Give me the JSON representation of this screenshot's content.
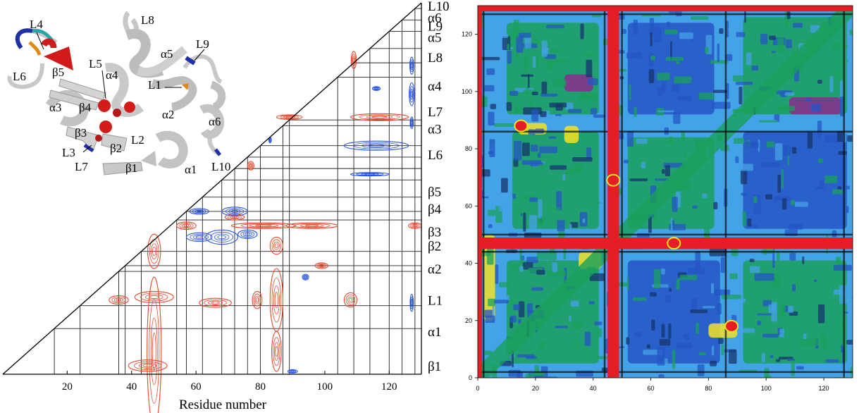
{
  "chart_data": [
    {
      "type": "heatmap",
      "panel": "left",
      "xlabel": "Residue number",
      "xlim": [
        0,
        130
      ],
      "ylim": [
        0,
        130
      ],
      "x_ticks": [
        20,
        40,
        60,
        80,
        100,
        120
      ],
      "segment_boundaries": [
        16,
        24,
        36,
        38,
        43,
        54,
        57,
        62,
        68,
        72,
        76,
        80,
        87,
        89,
        104,
        109,
        114,
        120,
        124,
        128
      ],
      "segment_labels": [
        {
          "label": "L10",
          "y": 129
        },
        {
          "label": "α6",
          "y": 125
        },
        {
          "label": "L9",
          "y": 122
        },
        {
          "label": "α5",
          "y": 118
        },
        {
          "label": "L8",
          "y": 111
        },
        {
          "label": "α4",
          "y": 101
        },
        {
          "label": "L7",
          "y": 92
        },
        {
          "label": "α3",
          "y": 86
        },
        {
          "label": "L6",
          "y": 77
        },
        {
          "label": "β5",
          "y": 64
        },
        {
          "label": "β4",
          "y": 58
        },
        {
          "label": "β3",
          "y": 50
        },
        {
          "label": "β2",
          "y": 45
        },
        {
          "label": "α2",
          "y": 37
        },
        {
          "label": "L1",
          "y": 26
        },
        {
          "label": "α1",
          "y": 15
        },
        {
          "label": "β1",
          "y": 3
        }
      ],
      "positive_color": "#e8472b",
      "negative_color": "#2b55e0",
      "contours": [
        {
          "sign": "positive",
          "x": 47,
          "y": 8,
          "rx": 2.2,
          "ry": 26
        },
        {
          "sign": "positive",
          "x": 45,
          "y": 3,
          "rx": 6,
          "ry": 2
        },
        {
          "sign": "positive",
          "x": 47,
          "y": 27,
          "rx": 6,
          "ry": 2
        },
        {
          "sign": "positive",
          "x": 47,
          "y": 43,
          "rx": 2,
          "ry": 6
        },
        {
          "sign": "positive",
          "x": 36,
          "y": 26,
          "rx": 3,
          "ry": 1.5
        },
        {
          "sign": "positive",
          "x": 66,
          "y": 25,
          "rx": 5,
          "ry": 1.6
        },
        {
          "sign": "positive",
          "x": 85,
          "y": 26,
          "rx": 2,
          "ry": 11
        },
        {
          "sign": "positive",
          "x": 85,
          "y": 8,
          "rx": 1.5,
          "ry": 7
        },
        {
          "sign": "positive",
          "x": 85,
          "y": 45,
          "rx": 2,
          "ry": 3
        },
        {
          "sign": "positive",
          "x": 79,
          "y": 26,
          "rx": 1.5,
          "ry": 3
        },
        {
          "sign": "positive",
          "x": 108,
          "y": 26,
          "rx": 2,
          "ry": 2.5
        },
        {
          "sign": "positive",
          "x": 99,
          "y": 38,
          "rx": 2,
          "ry": 1
        },
        {
          "sign": "positive",
          "x": 81,
          "y": 52,
          "rx": 10,
          "ry": 1
        },
        {
          "sign": "positive",
          "x": 96,
          "y": 52,
          "rx": 8,
          "ry": 1
        },
        {
          "sign": "positive",
          "x": 57,
          "y": 52,
          "rx": 3,
          "ry": 1.3
        },
        {
          "sign": "positive",
          "x": 72,
          "y": 55,
          "rx": 3,
          "ry": 1
        },
        {
          "sign": "positive",
          "x": 117,
          "y": 90,
          "rx": 9,
          "ry": 1.2
        },
        {
          "sign": "positive",
          "x": 109,
          "y": 110,
          "rx": 0.8,
          "ry": 3
        },
        {
          "sign": "positive",
          "x": 89,
          "y": 90,
          "rx": 4,
          "ry": 0.8
        },
        {
          "sign": "positive",
          "x": 77,
          "y": 73,
          "rx": 1,
          "ry": 1.5
        },
        {
          "sign": "positive",
          "x": 128,
          "y": 52,
          "rx": 2,
          "ry": 1
        },
        {
          "sign": "negative",
          "x": 68,
          "y": 48,
          "rx": 5,
          "ry": 2.5
        },
        {
          "sign": "negative",
          "x": 61,
          "y": 48,
          "rx": 4,
          "ry": 1.5
        },
        {
          "sign": "negative",
          "x": 76,
          "y": 49,
          "rx": 3,
          "ry": 1.5
        },
        {
          "sign": "negative",
          "x": 72,
          "y": 57,
          "rx": 4,
          "ry": 1.5
        },
        {
          "sign": "negative",
          "x": 61,
          "y": 57,
          "rx": 3,
          "ry": 1
        },
        {
          "sign": "negative",
          "x": 116,
          "y": 80,
          "rx": 10,
          "ry": 1.6
        },
        {
          "sign": "negative",
          "x": 114,
          "y": 70,
          "rx": 6,
          "ry": 0.6
        },
        {
          "sign": "negative",
          "x": 116,
          "y": 100,
          "rx": 1.2,
          "ry": 0.7
        },
        {
          "sign": "negative",
          "x": 127,
          "y": 98,
          "rx": 0.8,
          "ry": 4
        },
        {
          "sign": "negative",
          "x": 127,
          "y": 108,
          "rx": 0.6,
          "ry": 3
        },
        {
          "sign": "negative",
          "x": 127,
          "y": 88,
          "rx": 0.5,
          "ry": 2
        },
        {
          "sign": "negative",
          "x": 127,
          "y": 25,
          "rx": 0.5,
          "ry": 3
        },
        {
          "sign": "negative",
          "x": 94,
          "y": 34,
          "rx": 1,
          "ry": 1
        },
        {
          "sign": "negative",
          "x": 90,
          "y": 1,
          "rx": 1.5,
          "ry": 0.6
        },
        {
          "sign": "negative",
          "x": 83,
          "y": 82,
          "rx": 0.4,
          "ry": 1
        }
      ]
    },
    {
      "type": "heatmap",
      "panel": "right",
      "xlim": [
        0,
        130
      ],
      "ylim": [
        0,
        130
      ],
      "x_ticks": [
        0,
        20,
        40,
        60,
        80,
        100,
        120
      ],
      "y_ticks": [
        0,
        20,
        40,
        60,
        80,
        100,
        120
      ],
      "background_color": "#44a2e6",
      "bands": [
        {
          "axis": "x",
          "from": 45,
          "to": 49,
          "color": "#e51d24"
        },
        {
          "axis": "y",
          "from": 45,
          "to": 49,
          "color": "#e51d24"
        },
        {
          "axis": "y",
          "from": 128,
          "to": 130,
          "color": "#e51d24"
        },
        {
          "axis": "x",
          "from": 0,
          "to": 1.5,
          "color": "#e51d24"
        }
      ],
      "patches": [
        {
          "x": 10,
          "y": 5,
          "w": 32,
          "h": 36,
          "color": "#1aa05c"
        },
        {
          "x": 12,
          "y": 52,
          "w": 30,
          "h": 34,
          "color": "#1aa05c"
        },
        {
          "x": 52,
          "y": 52,
          "w": 30,
          "h": 32,
          "color": "#1aa05c"
        },
        {
          "x": 92,
          "y": 5,
          "w": 36,
          "h": 36,
          "color": "#1aa05c"
        },
        {
          "x": 52,
          "y": 5,
          "w": 32,
          "h": 36,
          "color": "#2455c4"
        },
        {
          "x": 92,
          "y": 52,
          "w": 36,
          "h": 34,
          "color": "#2455c4"
        },
        {
          "x": 52,
          "y": 92,
          "w": 30,
          "h": 32,
          "color": "#2455c4"
        },
        {
          "x": 10,
          "y": 92,
          "w": 32,
          "h": 32,
          "color": "#1aa05c"
        },
        {
          "x": 92,
          "y": 92,
          "w": 36,
          "h": 34,
          "color": "#1aa05c"
        },
        {
          "x": 35,
          "y": 38,
          "w": 8,
          "h": 6,
          "color": "#f2e225"
        },
        {
          "x": 14,
          "y": 85,
          "w": 10,
          "h": 4,
          "color": "#f2e225"
        },
        {
          "x": 30,
          "y": 82,
          "w": 5,
          "h": 6,
          "color": "#f2e225"
        },
        {
          "x": 80,
          "y": 14,
          "w": 10,
          "h": 5,
          "color": "#f2e225"
        },
        {
          "x": 2,
          "y": 20,
          "w": 4,
          "h": 30,
          "color": "#f2e225"
        },
        {
          "x": 108,
          "y": 92,
          "w": 18,
          "h": 6,
          "color": "#8a2c8e"
        },
        {
          "x": 30,
          "y": 100,
          "w": 10,
          "h": 6,
          "color": "#8a2c8e"
        }
      ],
      "hot_spots": [
        {
          "x": 47,
          "y": 69,
          "color": "#e51d24"
        },
        {
          "x": 68,
          "y": 47,
          "color": "#e51d24"
        },
        {
          "x": 88,
          "y": 18,
          "color": "#e51d24"
        },
        {
          "x": 15,
          "y": 88,
          "color": "#e51d24"
        }
      ],
      "diagonal_color": "#1aa05c",
      "palette": [
        "#e51d24",
        "#f2e225",
        "#1aa05c",
        "#44a2e6",
        "#2455c4",
        "#8a2c8e",
        "#000000"
      ]
    }
  ],
  "structure": {
    "labels": [
      {
        "text": "L4"
      },
      {
        "text": "L8"
      },
      {
        "text": "L6"
      },
      {
        "text": "β5"
      },
      {
        "text": "L5"
      },
      {
        "text": "α4"
      },
      {
        "text": "α5"
      },
      {
        "text": "L9"
      },
      {
        "text": "L1"
      },
      {
        "text": "α3"
      },
      {
        "text": "β4"
      },
      {
        "text": "α2"
      },
      {
        "text": "α6"
      },
      {
        "text": "β3"
      },
      {
        "text": "L2"
      },
      {
        "text": "β2"
      },
      {
        "text": "L3"
      },
      {
        "text": "L7"
      },
      {
        "text": "β1"
      },
      {
        "text": "α1"
      },
      {
        "text": "L10"
      }
    ]
  }
}
